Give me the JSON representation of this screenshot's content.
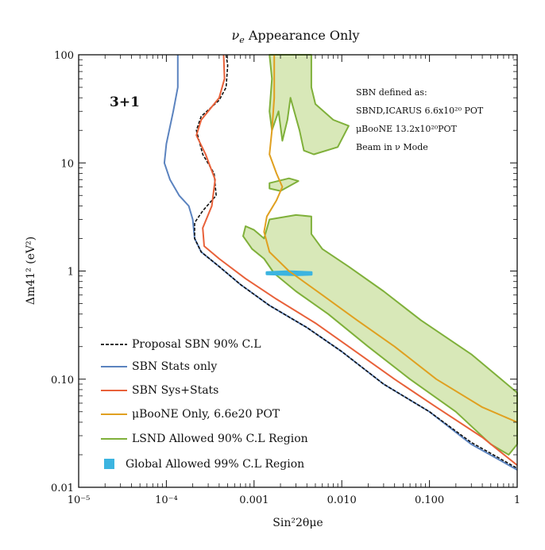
{
  "chart_data": {
    "type": "line",
    "title": "νe Appearance Only",
    "title_sub": "e",
    "title_main": "ν",
    "title_rest": " Appearance Only",
    "xlabel": "Sin²2θμe",
    "ylabel": "Δm41² (eV²)",
    "x_scale": "log",
    "y_scale": "log",
    "xlim": [
      1e-05,
      1
    ],
    "ylim": [
      0.01,
      100
    ],
    "grid": false,
    "x_ticks": [
      "10⁻⁵",
      "10⁻⁴",
      "0.001",
      "0.010",
      "0.100",
      "1"
    ],
    "y_ticks": [
      "0.01",
      "0.10",
      "1",
      "10",
      "100"
    ],
    "model_label": "3+1",
    "annotation_lines": [
      "SBN defined as:",
      "SBND,ICARUS 6.6x10²⁰ POT",
      "μBooNE 13.2x10²⁰POT",
      "Beam in ν Mode"
    ],
    "legend_placement": "bottom-left",
    "legend": [
      {
        "name": "Proposal SBN 90% C.L",
        "color": "#111111",
        "style": "dashed"
      },
      {
        "name": "SBN Stats only",
        "color": "#5b83bf",
        "style": "solid"
      },
      {
        "name": "SBN Sys+Stats",
        "color": "#e8613a",
        "style": "solid"
      },
      {
        "name": "μBooNE Only, 6.6e20 POT",
        "color": "#e0a020",
        "style": "solid"
      },
      {
        "name": "LSND Allowed 90% C.L Region",
        "color": "#7fb03a",
        "style": "region"
      },
      {
        "name": "Global Allowed 99% C.L Region",
        "color": "#3cb4e0",
        "style": "marker"
      }
    ],
    "series": [
      {
        "name": "SBN Stats only",
        "color": "#5b83bf",
        "points": [
          [
            0.000135,
            100
          ],
          [
            0.000135,
            50
          ],
          [
            0.00012,
            30
          ],
          [
            0.0001,
            15
          ],
          [
            9.5e-05,
            10
          ],
          [
            0.00011,
            7
          ],
          [
            0.00014,
            5
          ],
          [
            0.00018,
            4
          ],
          [
            0.0002,
            3
          ],
          [
            0.00021,
            2
          ],
          [
            0.00025,
            1.5
          ],
          [
            0.0004,
            1.1
          ],
          [
            0.0007,
            0.75
          ],
          [
            0.0015,
            0.48
          ],
          [
            0.004,
            0.3
          ],
          [
            0.01,
            0.18
          ],
          [
            0.03,
            0.09
          ],
          [
            0.1,
            0.05
          ],
          [
            0.3,
            0.025
          ],
          [
            1,
            0.0145
          ]
        ]
      },
      {
        "name": "Proposal SBN 90% C.L",
        "color": "#111111",
        "dashed": true,
        "points": [
          [
            0.00048,
            100
          ],
          [
            0.0005,
            80
          ],
          [
            0.00048,
            50
          ],
          [
            0.0004,
            38
          ],
          [
            0.00025,
            27
          ],
          [
            0.00022,
            20
          ],
          [
            0.00026,
            12
          ],
          [
            0.00035,
            8
          ],
          [
            0.00037,
            5
          ],
          [
            0.00026,
            3.6
          ],
          [
            0.00021,
            2.8
          ],
          [
            0.00021,
            2
          ],
          [
            0.00025,
            1.5
          ],
          [
            0.0004,
            1.1
          ],
          [
            0.0007,
            0.75
          ],
          [
            0.0015,
            0.48
          ],
          [
            0.004,
            0.3
          ],
          [
            0.01,
            0.18
          ],
          [
            0.03,
            0.09
          ],
          [
            0.1,
            0.05
          ],
          [
            0.3,
            0.026
          ],
          [
            1,
            0.015
          ]
        ]
      },
      {
        "name": "SBN Sys+Stats",
        "color": "#e8613a",
        "points": [
          [
            0.00045,
            100
          ],
          [
            0.00046,
            60
          ],
          [
            0.0004,
            40
          ],
          [
            0.00025,
            25
          ],
          [
            0.00022,
            18
          ],
          [
            0.00028,
            12
          ],
          [
            0.00036,
            7
          ],
          [
            0.00033,
            4
          ],
          [
            0.00026,
            2.5
          ],
          [
            0.00027,
            1.7
          ],
          [
            0.0004,
            1.3
          ],
          [
            0.0008,
            0.85
          ],
          [
            0.0018,
            0.55
          ],
          [
            0.005,
            0.33
          ],
          [
            0.012,
            0.2
          ],
          [
            0.04,
            0.1
          ],
          [
            0.12,
            0.055
          ],
          [
            0.4,
            0.029
          ],
          [
            1,
            0.016
          ]
        ]
      },
      {
        "name": "μBooNE Only, 6.6e20 POT",
        "color": "#e0a020",
        "points": [
          [
            0.0017,
            100
          ],
          [
            0.0017,
            60
          ],
          [
            0.0017,
            40
          ],
          [
            0.0016,
            20
          ],
          [
            0.0015,
            12
          ],
          [
            0.0018,
            8
          ],
          [
            0.0021,
            6
          ],
          [
            0.0018,
            4.5
          ],
          [
            0.0014,
            3.2
          ],
          [
            0.0013,
            2.3
          ],
          [
            0.0015,
            1.5
          ],
          [
            0.0025,
            1
          ],
          [
            0.006,
            0.6
          ],
          [
            0.015,
            0.35
          ],
          [
            0.04,
            0.2
          ],
          [
            0.12,
            0.1
          ],
          [
            0.4,
            0.055
          ],
          [
            1,
            0.04
          ]
        ]
      }
    ],
    "regions": [
      {
        "name": "LSND Allowed 90% C.L Region",
        "fill": "#d8e8b8",
        "stroke": "#7fb03a",
        "polygons": [
          [
            [
              0.0015,
              100
            ],
            [
              0.0045,
              100
            ],
            [
              0.0045,
              50
            ],
            [
              0.005,
              35
            ],
            [
              0.008,
              25
            ],
            [
              0.012,
              22
            ],
            [
              0.009,
              14
            ],
            [
              0.0048,
              12
            ],
            [
              0.0037,
              13
            ],
            [
              0.0033,
              20
            ],
            [
              0.0026,
              40
            ],
            [
              0.0024,
              25
            ],
            [
              0.0021,
              16
            ],
            [
              0.0019,
              30
            ],
            [
              0.0016,
              20
            ],
            [
              0.0015,
              30
            ],
            [
              0.0016,
              60
            ]
          ],
          [
            [
              0.0015,
              6.5
            ],
            [
              0.0025,
              7.2
            ],
            [
              0.0032,
              6.8
            ],
            [
              0.002,
              5.5
            ],
            [
              0.0015,
              5.8
            ]
          ],
          [
            [
              0.0013,
              2
            ],
            [
              0.0015,
              3
            ],
            [
              0.003,
              3.3
            ],
            [
              0.0045,
              3.2
            ],
            [
              0.0045,
              2.2
            ],
            [
              0.006,
              1.6
            ],
            [
              0.012,
              1.1
            ],
            [
              0.03,
              0.65
            ],
            [
              0.08,
              0.35
            ],
            [
              0.3,
              0.17
            ],
            [
              1,
              0.075
            ],
            [
              1,
              0.025
            ],
            [
              0.8,
              0.02
            ],
            [
              0.5,
              0.025
            ],
            [
              0.2,
              0.05
            ],
            [
              0.06,
              0.1
            ],
            [
              0.02,
              0.2
            ],
            [
              0.007,
              0.4
            ],
            [
              0.003,
              0.65
            ],
            [
              0.0017,
              0.95
            ],
            [
              0.0013,
              1.3
            ],
            [
              0.00095,
              1.6
            ],
            [
              0.00075,
              2.1
            ],
            [
              0.0008,
              2.6
            ],
            [
              0.001,
              2.4
            ]
          ]
        ]
      },
      {
        "name": "Global Allowed 99% C.L Region",
        "fill": "#3cb4e0",
        "stroke": "#3cb4e0",
        "polygons": [
          [
            [
              0.0014,
              0.97
            ],
            [
              0.0025,
              0.99
            ],
            [
              0.0045,
              0.97
            ],
            [
              0.0045,
              0.93
            ],
            [
              0.003,
              0.92
            ],
            [
              0.002,
              0.93
            ],
            [
              0.0014,
              0.94
            ]
          ]
        ]
      }
    ]
  }
}
